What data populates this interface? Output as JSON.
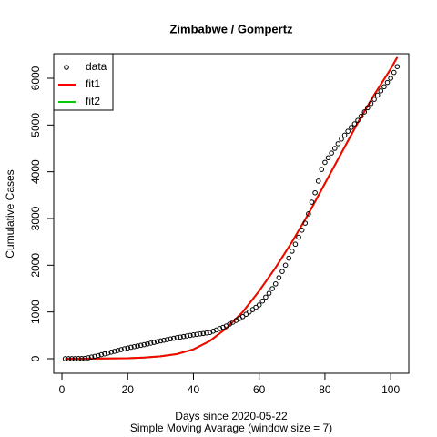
{
  "chart_data": {
    "type": "line",
    "title": "Zimbabwe / Gompertz",
    "x_label": "Days since 2020-05-22",
    "subtitle": "Simple Moving Avarage (window size = 7)",
    "y_label": "Cumulative Cases",
    "xlim": [
      -2.5,
      105.5
    ],
    "ylim": [
      -312,
      6526
    ],
    "xticks": [
      0,
      20,
      40,
      60,
      80,
      100
    ],
    "yticks": [
      0,
      1000,
      2000,
      3000,
      4000,
      5000,
      6000
    ],
    "legend": "top-left",
    "series": [
      {
        "name": "data",
        "kind": "points",
        "color": "#000000",
        "x": [
          1,
          2,
          3,
          4,
          5,
          6,
          7,
          8,
          9,
          10,
          11,
          12,
          13,
          14,
          15,
          16,
          17,
          18,
          19,
          20,
          21,
          22,
          23,
          24,
          25,
          26,
          27,
          28,
          29,
          30,
          31,
          32,
          33,
          34,
          35,
          36,
          37,
          38,
          39,
          40,
          41,
          42,
          43,
          44,
          45,
          46,
          47,
          48,
          49,
          50,
          51,
          52,
          53,
          54,
          55,
          56,
          57,
          58,
          59,
          60,
          61,
          62,
          63,
          64,
          65,
          66,
          67,
          68,
          69,
          70,
          71,
          72,
          73,
          74,
          75,
          76,
          77,
          78,
          79,
          80,
          81,
          82,
          83,
          84,
          85,
          86,
          87,
          88,
          89,
          90,
          91,
          92,
          93,
          94,
          95,
          96,
          97,
          98,
          99,
          100,
          101,
          102
        ],
        "values": [
          0,
          1,
          2,
          2,
          3,
          4,
          5,
          20,
          35,
          50,
          68,
          86,
          104,
          122,
          140,
          158,
          176,
          194,
          212,
          230,
          244,
          258,
          272,
          286,
          300,
          316,
          332,
          348,
          364,
          380,
          394,
          408,
          422,
          436,
          450,
          462,
          474,
          486,
          498,
          510,
          520,
          530,
          540,
          550,
          560,
          588,
          616,
          644,
          672,
          700,
          740,
          780,
          820,
          860,
          900,
          950,
          1000,
          1050,
          1100,
          1150,
          1233,
          1317,
          1400,
          1500,
          1600,
          1733,
          1867,
          2000,
          2150,
          2300,
          2450,
          2600,
          2750,
          2900,
          3100,
          3350,
          3550,
          3800,
          4050,
          4200,
          4300,
          4400,
          4500,
          4600,
          4700,
          4783,
          4867,
          4950,
          5025,
          5100,
          5190,
          5280,
          5370,
          5460,
          5550,
          5640,
          5730,
          5820,
          5910,
          6000,
          6125,
          6250
        ]
      },
      {
        "name": "fit1",
        "kind": "line",
        "color": "#ff0000",
        "x": [
          1,
          10,
          20,
          25,
          30,
          35,
          40,
          45,
          50,
          55,
          60,
          65,
          70,
          75,
          80,
          85,
          90,
          95,
          100,
          102
        ],
        "values": [
          0,
          2,
          10,
          25,
          50,
          100,
          200,
          380,
          650,
          1000,
          1450,
          1950,
          2500,
          3100,
          3750,
          4400,
          5050,
          5650,
          6200,
          6450
        ]
      },
      {
        "name": "fit2",
        "kind": "line",
        "color": "#00cd00",
        "x": [
          1,
          10,
          20,
          25,
          30,
          35,
          40,
          45,
          50,
          55,
          60,
          65,
          70,
          75,
          80,
          85,
          90,
          95,
          100,
          102
        ],
        "values": [
          0,
          2,
          10,
          25,
          50,
          100,
          200,
          380,
          650,
          1000,
          1450,
          1950,
          2500,
          3100,
          3750,
          4400,
          5050,
          5650,
          6200,
          6450
        ]
      }
    ]
  }
}
